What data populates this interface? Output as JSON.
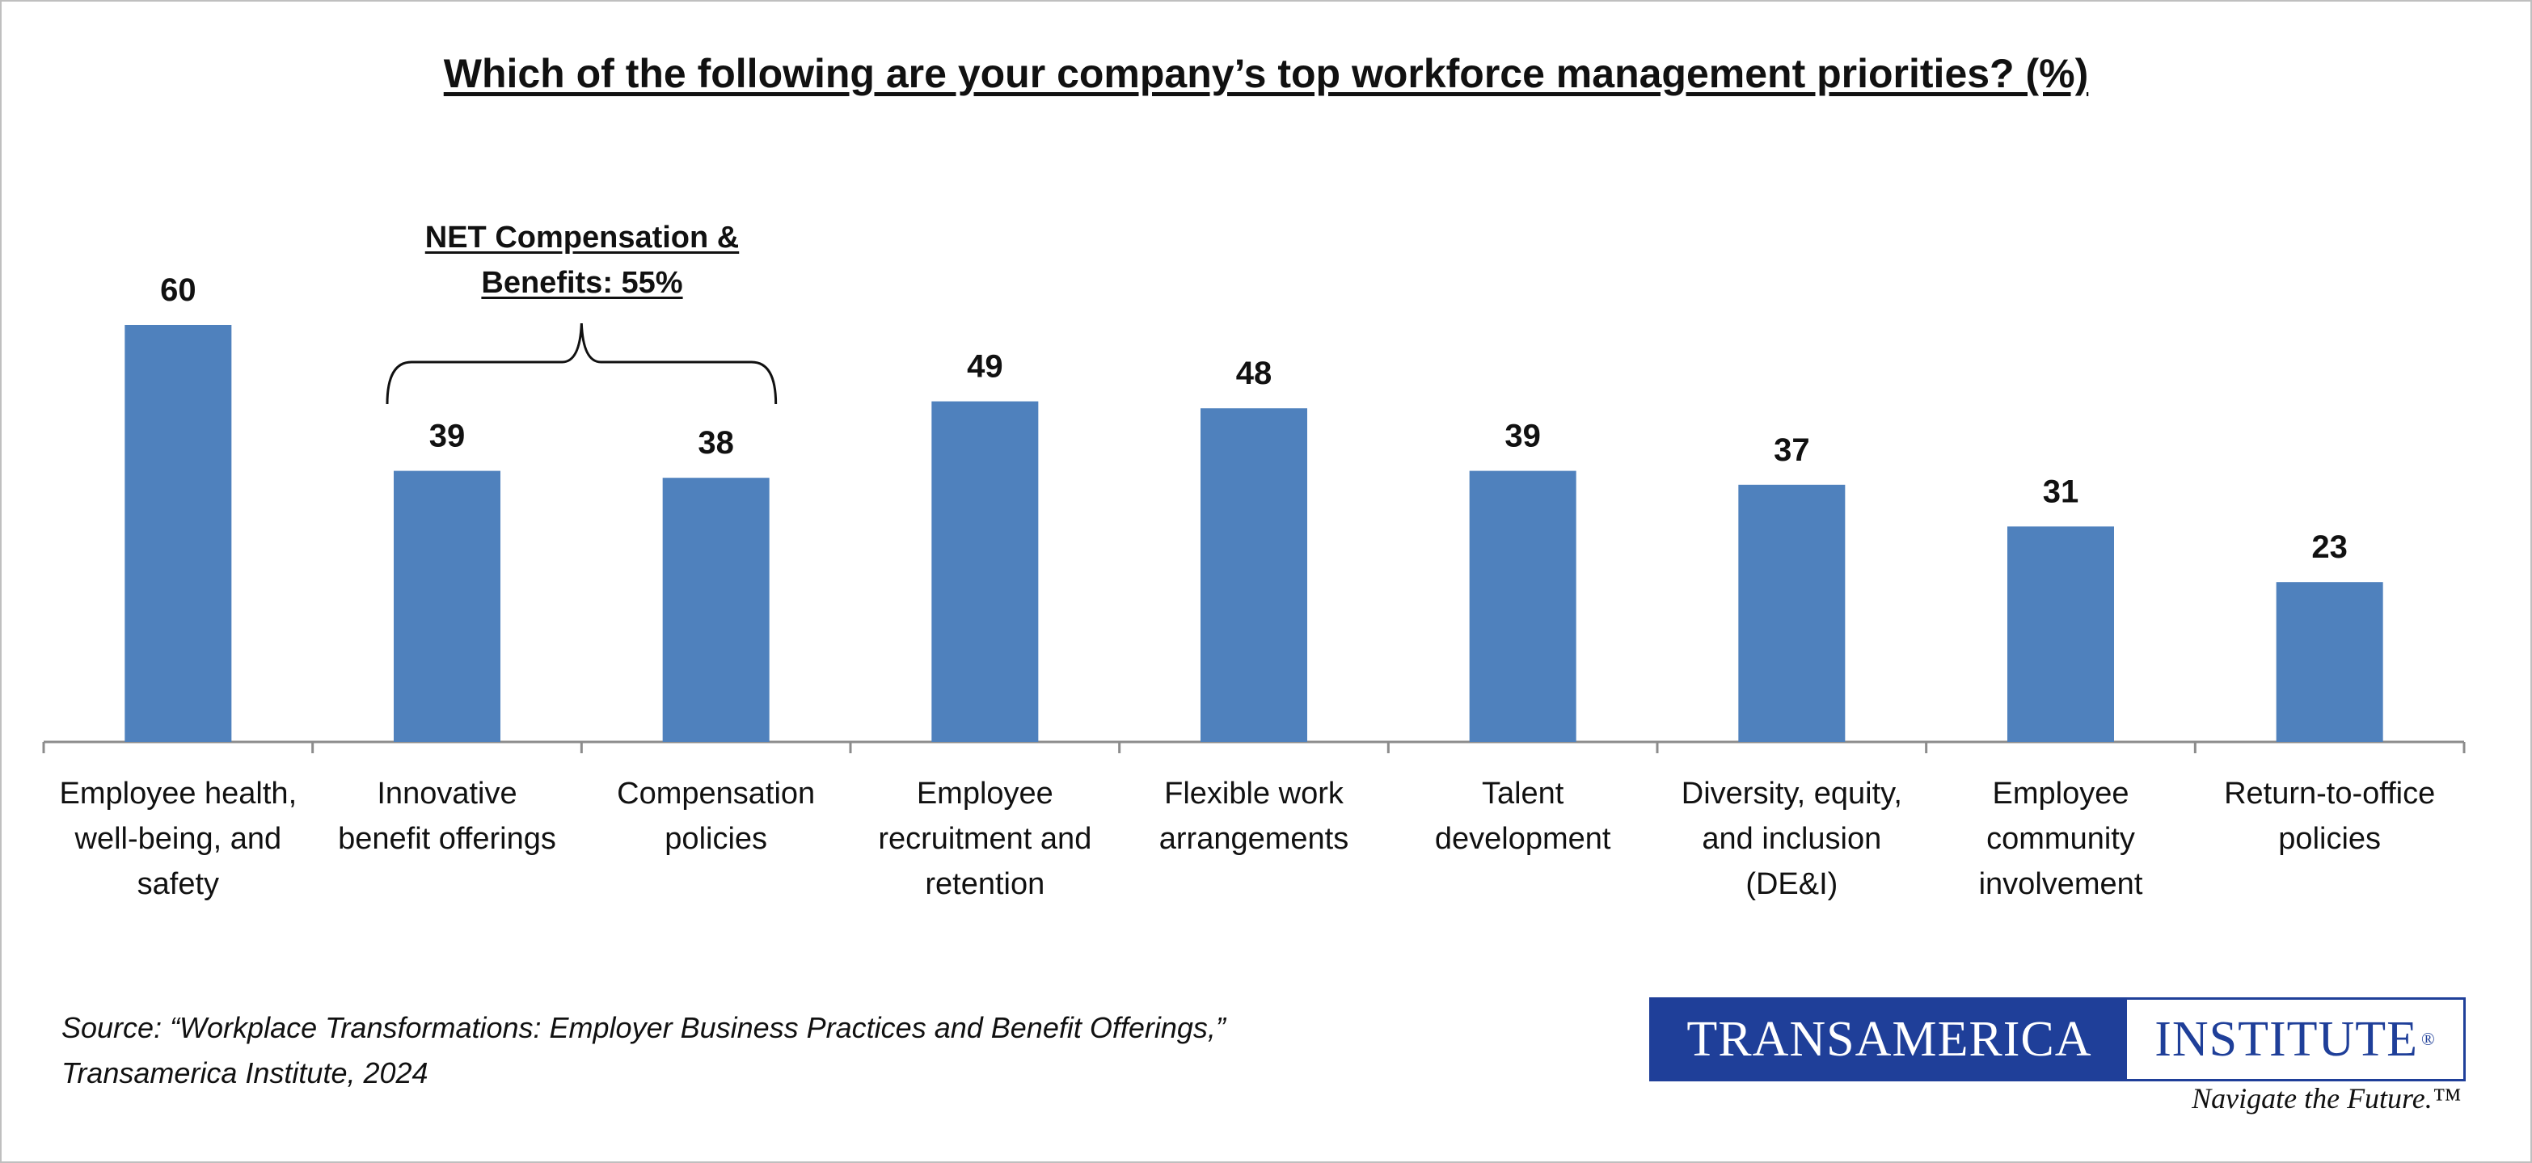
{
  "chart_data": {
    "type": "bar",
    "title": "Which of the following are your company’s top workforce management priorities? (%)",
    "categories": [
      [
        "Employee health,",
        "well-being, and",
        "safety"
      ],
      [
        "Innovative",
        "benefit offerings"
      ],
      [
        "Compensation",
        "policies"
      ],
      [
        "Employee",
        "recruitment and",
        "retention"
      ],
      [
        "Flexible work",
        "arrangements"
      ],
      [
        "Talent",
        "development"
      ],
      [
        "Diversity, equity,",
        "and inclusion",
        "(DE&I)"
      ],
      [
        "Employee",
        "community",
        "involvement"
      ],
      [
        "Return-to-office",
        "policies"
      ]
    ],
    "values": [
      60,
      39,
      38,
      49,
      48,
      39,
      37,
      31,
      23
    ],
    "ylim": [
      0,
      100
    ],
    "bar_color": "#4f81bd",
    "grid": false,
    "annotation": {
      "lines": [
        "NET Compensation &",
        "Benefits: 55%"
      ],
      "spans_categories": [
        1,
        2
      ]
    }
  },
  "source": {
    "line1": "Source: “Workplace Transformations: Employer Business Practices and Benefit Offerings,”",
    "line2": "Transamerica Institute, 2024"
  },
  "logo": {
    "left_text": "TRANSAMERICA",
    "right_text": "INSTITUTE",
    "registered": "®",
    "tagline": "Navigate the Future.™",
    "brand_color": "#1f3f99"
  }
}
